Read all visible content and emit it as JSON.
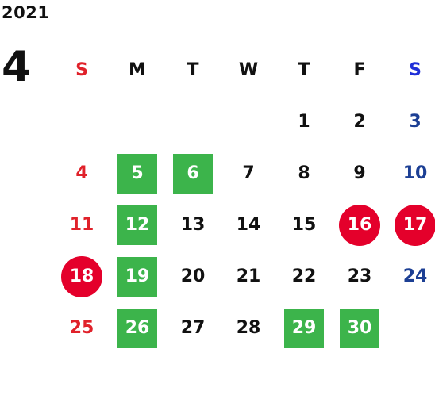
{
  "calendar": {
    "year": "2021",
    "month": "4",
    "weekdays": [
      "S",
      "M",
      "T",
      "W",
      "T",
      "F",
      "S"
    ],
    "weeks": [
      [
        "",
        "",
        "",
        "",
        "1",
        "2",
        "3"
      ],
      [
        "4",
        "5",
        "6",
        "7",
        "8",
        "9",
        "10"
      ],
      [
        "11",
        "12",
        "13",
        "14",
        "15",
        "16",
        "17"
      ],
      [
        "18",
        "19",
        "20",
        "21",
        "22",
        "23",
        "24"
      ],
      [
        "25",
        "26",
        "27",
        "28",
        "29",
        "30",
        ""
      ]
    ],
    "green_square_days": [
      "5",
      "6",
      "12",
      "19",
      "26",
      "29",
      "30"
    ],
    "red_circle_days": [
      "16",
      "17",
      "18"
    ]
  },
  "colors": {
    "sunday": "#e0212a",
    "saturday": "#1c3f94",
    "saturday_header": "#1f2fd8",
    "green_marker": "#3cb44b",
    "red_marker": "#e4002b",
    "text": "#111111"
  }
}
